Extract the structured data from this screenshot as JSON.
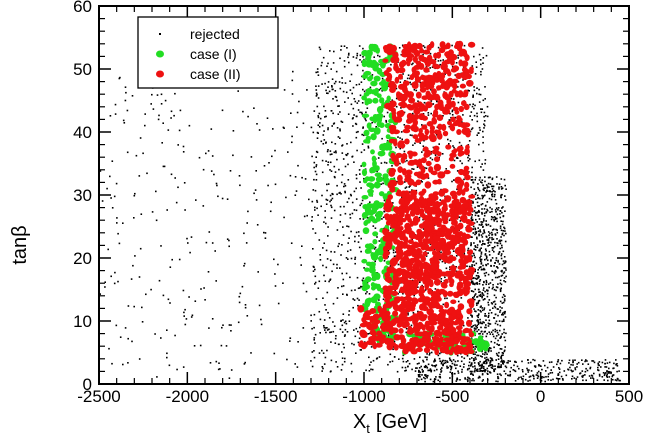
{
  "chart_data": {
    "type": "scatter",
    "title": "",
    "xlabel": "X",
    "xlabel_sub": "t",
    "xlabel_unit": "[GeV]",
    "ylabel_main": "tan",
    "ylabel_greek": "β",
    "xlim": [
      -2500,
      500
    ],
    "ylim": [
      0,
      60
    ],
    "xticks": [
      -2500,
      -2000,
      -1500,
      -1000,
      -500,
      0,
      500
    ],
    "yticks": [
      0,
      10,
      20,
      30,
      40,
      50,
      60
    ],
    "grid": false,
    "legend_position": "top-left",
    "series": [
      {
        "name": "rejected",
        "color": "#000000",
        "marker": "dot",
        "regions": [
          {
            "x": [
              -1300,
              -300
            ],
            "y": [
              2,
              54
            ],
            "count": 1600
          },
          {
            "x": [
              -2500,
              -1300
            ],
            "y": [
              1,
              50
            ],
            "count": 300
          },
          {
            "x": [
              -400,
              -200
            ],
            "y": [
              2,
              33
            ],
            "count": 700
          },
          {
            "x": [
              -700,
              450
            ],
            "y": [
              0.5,
              4
            ],
            "count": 400
          }
        ]
      },
      {
        "name": "case (I)",
        "color": "#22dd22",
        "marker": "blob",
        "regions": [
          {
            "x": [
              -1000,
              -820
            ],
            "y": [
              6,
              54
            ],
            "count": 260
          },
          {
            "x": [
              -780,
              -300
            ],
            "y": [
              5,
              8
            ],
            "count": 60
          }
        ]
      },
      {
        "name": "case (II)",
        "color": "#ee1111",
        "marker": "blob",
        "regions": [
          {
            "x": [
              -880,
              -390
            ],
            "y": [
              44,
              54
            ],
            "count": 200
          },
          {
            "x": [
              -850,
              -410
            ],
            "y": [
              30,
              44
            ],
            "count": 180
          },
          {
            "x": [
              -880,
              -390
            ],
            "y": [
              5,
              30
            ],
            "count": 800
          },
          {
            "x": [
              -1020,
              -880
            ],
            "y": [
              6,
              12
            ],
            "count": 50
          }
        ]
      }
    ]
  }
}
